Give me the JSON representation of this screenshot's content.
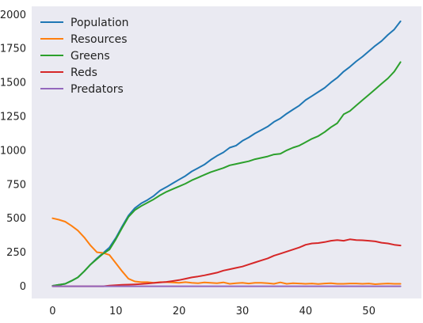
{
  "chart_data": {
    "type": "line",
    "title": "",
    "xlabel": "",
    "ylabel": "",
    "xlim": [
      -3.3,
      58.3
    ],
    "ylim": [
      -90,
      2060
    ],
    "grid": false,
    "legend_position": "top-left",
    "background": "#EAEAF2",
    "x_ticks": [
      0,
      10,
      20,
      30,
      40,
      50
    ],
    "x_tick_labels": [
      "0",
      "10",
      "20",
      "30",
      "40",
      "50"
    ],
    "y_ticks": [
      0,
      250,
      500,
      750,
      1000,
      1250,
      1500,
      1750,
      2000
    ],
    "y_tick_labels": [
      "0",
      "250",
      "500",
      "750",
      "1000",
      "1250",
      "1500",
      "1750",
      "2000"
    ],
    "x": [
      0,
      1,
      2,
      3,
      4,
      5,
      6,
      7,
      8,
      9,
      10,
      11,
      12,
      13,
      14,
      15,
      16,
      17,
      18,
      19,
      20,
      21,
      22,
      23,
      24,
      25,
      26,
      27,
      28,
      29,
      30,
      31,
      32,
      33,
      34,
      35,
      36,
      37,
      38,
      39,
      40,
      41,
      42,
      43,
      44,
      45,
      46,
      47,
      48,
      49,
      50,
      51,
      52,
      53,
      54,
      55
    ],
    "series": [
      {
        "name": "Population",
        "color": "#1F77B4",
        "values": [
          3,
          10,
          18,
          40,
          65,
          110,
          160,
          205,
          245,
          285,
          355,
          440,
          520,
          575,
          610,
          635,
          665,
          705,
          730,
          758,
          785,
          812,
          845,
          870,
          895,
          930,
          960,
          985,
          1020,
          1035,
          1070,
          1095,
          1125,
          1150,
          1175,
          1210,
          1235,
          1270,
          1300,
          1330,
          1370,
          1400,
          1430,
          1460,
          1500,
          1535,
          1580,
          1615,
          1655,
          1690,
          1730,
          1770,
          1805,
          1850,
          1890,
          1950
        ]
      },
      {
        "name": "Resources",
        "color": "#FF7F0E",
        "values": [
          500,
          490,
          475,
          445,
          410,
          360,
          300,
          250,
          245,
          230,
          170,
          110,
          55,
          35,
          30,
          30,
          25,
          30,
          30,
          28,
          25,
          30,
          25,
          22,
          28,
          25,
          22,
          28,
          18,
          22,
          25,
          20,
          25,
          25,
          22,
          18,
          28,
          18,
          22,
          20,
          18,
          20,
          16,
          20,
          22,
          18,
          18,
          20,
          20,
          18,
          20,
          15,
          18,
          20,
          18,
          18
        ]
      },
      {
        "name": "Greens",
        "color": "#2CA02C",
        "values": [
          3,
          10,
          18,
          40,
          65,
          110,
          160,
          200,
          240,
          270,
          345,
          430,
          510,
          560,
          590,
          615,
          640,
          670,
          695,
          715,
          735,
          755,
          780,
          800,
          820,
          840,
          855,
          870,
          890,
          900,
          910,
          920,
          935,
          945,
          955,
          970,
          975,
          1000,
          1020,
          1035,
          1060,
          1085,
          1105,
          1135,
          1170,
          1200,
          1265,
          1290,
          1330,
          1370,
          1410,
          1450,
          1490,
          1530,
          1580,
          1650
        ]
      },
      {
        "name": "Reds",
        "color": "#D62728",
        "values": [
          0,
          0,
          0,
          0,
          0,
          0,
          0,
          0,
          0,
          5,
          8,
          10,
          12,
          14,
          16,
          20,
          24,
          28,
          32,
          38,
          45,
          55,
          65,
          72,
          80,
          90,
          100,
          115,
          125,
          135,
          145,
          160,
          175,
          190,
          205,
          225,
          240,
          255,
          270,
          285,
          305,
          315,
          318,
          325,
          335,
          340,
          335,
          345,
          340,
          338,
          335,
          330,
          320,
          315,
          305,
          300
        ]
      },
      {
        "name": "Predators",
        "color": "#9467BD",
        "values": [
          0,
          0,
          0,
          0,
          0,
          0,
          0,
          0,
          0,
          0,
          0,
          0,
          0,
          0,
          0,
          0,
          0,
          0,
          0,
          0,
          0,
          0,
          0,
          0,
          0,
          0,
          0,
          0,
          0,
          0,
          0,
          0,
          0,
          0,
          0,
          0,
          0,
          0,
          0,
          0,
          0,
          0,
          0,
          0,
          0,
          0,
          0,
          0,
          0,
          0,
          0,
          0,
          0,
          0,
          0,
          0
        ]
      }
    ]
  }
}
